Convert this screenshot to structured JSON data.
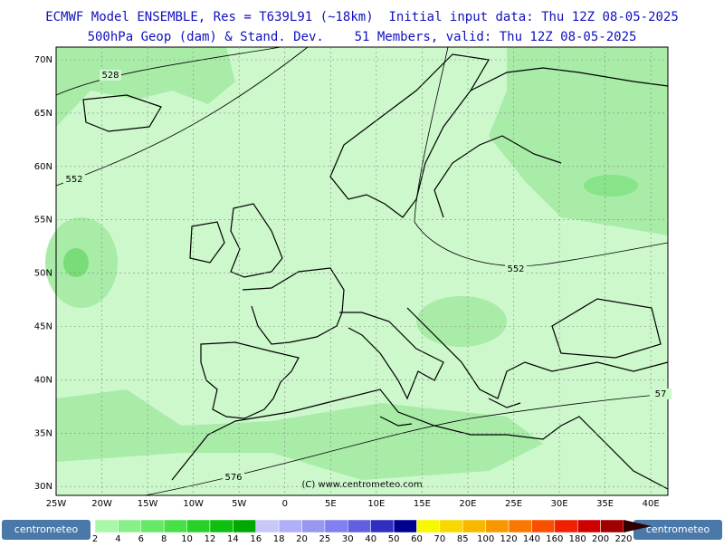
{
  "header": {
    "line1": "ECMWF Model ENSEMBLE, Res = T639L91 (~18km)  Initial input data: Thu 12Z 08-05-2025",
    "line2": "500hPa Geop (dam) & Stand. Dev.    51 Members, valid: Thu 12Z 08-05-2025"
  },
  "map": {
    "lat_labels": [
      "70N",
      "65N",
      "60N",
      "55N",
      "50N",
      "45N",
      "40N",
      "35N",
      "30N"
    ],
    "lon_labels": [
      "25W",
      "20W",
      "15W",
      "10W",
      "5W",
      "0",
      "5E",
      "10E",
      "15E",
      "20E",
      "25E",
      "30E",
      "35E",
      "40E"
    ],
    "contour_labels": [
      "528",
      "552",
      "552",
      "57",
      "576"
    ],
    "copyright": "(C) www.centrometeo.com"
  },
  "colorbar": {
    "labels": [
      "2",
      "4",
      "6",
      "8",
      "10",
      "12",
      "14",
      "16",
      "18",
      "20",
      "25",
      "30",
      "40",
      "50",
      "60",
      "70",
      "85",
      "100",
      "120",
      "140",
      "160",
      "180",
      "200",
      "220"
    ],
    "colors": [
      "#a8f8a8",
      "#88f088",
      "#68e868",
      "#48e048",
      "#28d028",
      "#10c010",
      "#00a800",
      "#c8c8f8",
      "#b0b0f8",
      "#9898f0",
      "#8080f0",
      "#6060e0",
      "#3030c0",
      "#000090",
      "#f8f800",
      "#f8d800",
      "#f8b800",
      "#f89800",
      "#f87800",
      "#f85000",
      "#f02000",
      "#d00000",
      "#a00000",
      "#780000",
      "#500000",
      "#300000"
    ],
    "logos": [
      "centrometeo",
      "centrometeo"
    ]
  }
}
